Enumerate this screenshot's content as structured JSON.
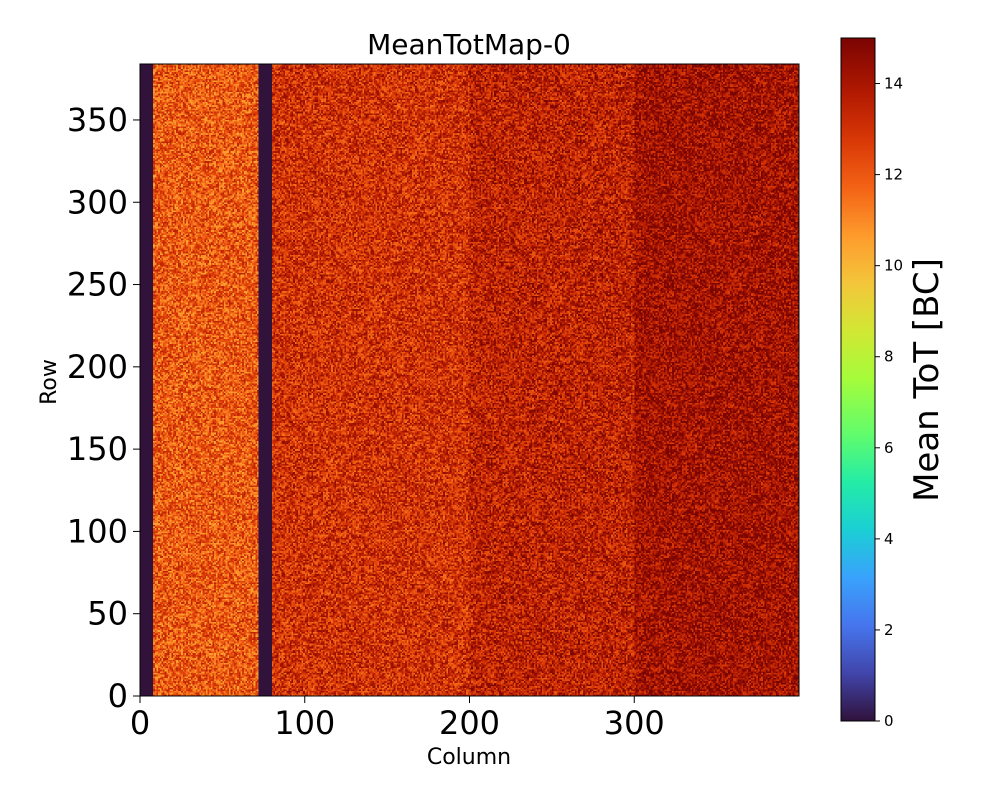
{
  "chart_data": {
    "type": "heatmap",
    "title": "MeanTotMap-0",
    "xlabel": "Column",
    "ylabel": "Row",
    "xlim": [
      0,
      400
    ],
    "ylim": [
      0,
      384
    ],
    "x_ticks": [
      0,
      100,
      200,
      300
    ],
    "y_ticks": [
      0,
      50,
      100,
      150,
      200,
      250,
      300,
      350
    ],
    "colorbar": {
      "label": "Mean ToT [BC]",
      "range": [
        0,
        15
      ],
      "ticks": [
        0,
        2,
        4,
        6,
        8,
        10,
        12,
        14
      ],
      "colormap": "turbo"
    },
    "value_bands": [
      {
        "columns": [
          0,
          8
        ],
        "mean_tot": 0
      },
      {
        "columns": [
          8,
          72
        ],
        "mean_tot": 12.0
      },
      {
        "columns": [
          72,
          80
        ],
        "mean_tot": 0
      },
      {
        "columns": [
          80,
          200
        ],
        "mean_tot": 13.0
      },
      {
        "columns": [
          200,
          300
        ],
        "mean_tot": 13.5
      },
      {
        "columns": [
          300,
          400
        ],
        "mean_tot": 14.2
      }
    ],
    "grid": false
  }
}
